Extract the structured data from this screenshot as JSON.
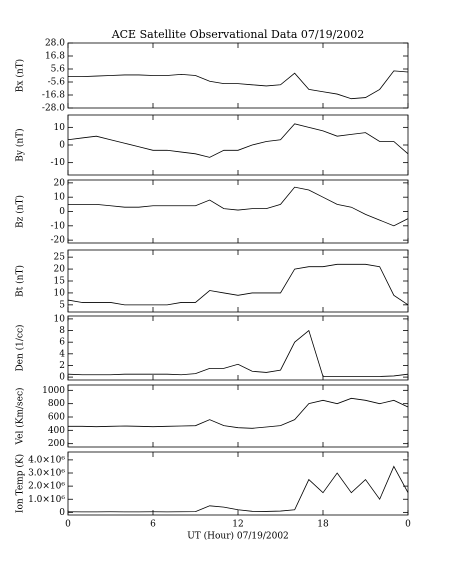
{
  "chart_data": [
    {
      "type": "line",
      "title": "ACE Satellite Observational Data   07/19/2002",
      "ylabel": "Bx (nT)",
      "x": [
        0,
        1,
        2,
        3,
        4,
        5,
        6,
        7,
        8,
        9,
        10,
        11,
        12,
        13,
        14,
        15,
        16,
        17,
        18,
        19,
        20,
        21,
        22,
        23,
        24
      ],
      "values": [
        -1,
        -1,
        -0.5,
        0,
        0.5,
        0.5,
        0,
        0,
        1,
        0,
        -5,
        -7,
        -7,
        -8,
        -9,
        -8,
        2,
        -12,
        -14,
        -16,
        -20,
        -19,
        -12,
        4,
        3
      ],
      "xlim": [
        0,
        24
      ],
      "ylim": [
        -28,
        28
      ],
      "yticks": [
        {
          "value": 28,
          "label": "28.0"
        },
        16.8,
        5.6,
        -5.6,
        -16.8,
        {
          "value": -28,
          "label": "-28.0"
        }
      ],
      "color": "#000000"
    },
    {
      "type": "line",
      "ylabel": "By (nT)",
      "x": [
        0,
        1,
        2,
        3,
        4,
        5,
        6,
        7,
        8,
        9,
        10,
        11,
        12,
        13,
        14,
        15,
        16,
        17,
        18,
        19,
        20,
        21,
        22,
        23,
        24
      ],
      "values": [
        3,
        4,
        5,
        3,
        1,
        -1,
        -3,
        -3,
        -4,
        -5,
        -7,
        -3,
        -3,
        0,
        2,
        3,
        12,
        10,
        8,
        5,
        6,
        7,
        2,
        2,
        -5
      ],
      "xlim": [
        0,
        24
      ],
      "ylim": [
        -17,
        17
      ],
      "yticks": [
        10,
        0,
        -10
      ],
      "color": "#000000"
    },
    {
      "type": "line",
      "ylabel": "Bz (nT)",
      "x": [
        0,
        1,
        2,
        3,
        4,
        5,
        6,
        7,
        8,
        9,
        10,
        11,
        12,
        13,
        14,
        15,
        16,
        17,
        18,
        19,
        20,
        21,
        22,
        23,
        24
      ],
      "values": [
        5,
        5,
        5,
        4,
        3,
        3,
        4,
        4,
        4,
        4,
        8,
        2,
        1,
        2,
        2,
        5,
        17,
        15,
        10,
        5,
        3,
        -2,
        -6,
        -10,
        -5
      ],
      "xlim": [
        0,
        24
      ],
      "ylim": [
        -22,
        22
      ],
      "yticks": [
        20,
        10,
        0,
        -10,
        -20
      ],
      "color": "#000000"
    },
    {
      "type": "line",
      "ylabel": "Bt (nT)",
      "x": [
        0,
        1,
        2,
        3,
        4,
        5,
        6,
        7,
        8,
        9,
        10,
        11,
        12,
        13,
        14,
        15,
        16,
        17,
        18,
        19,
        20,
        21,
        22,
        23,
        24
      ],
      "values": [
        7,
        6,
        6,
        6,
        5,
        5,
        5,
        5,
        6,
        6,
        11,
        10,
        9,
        10,
        10,
        10,
        20,
        21,
        21,
        22,
        22,
        22,
        21,
        9,
        5
      ],
      "xlim": [
        0,
        24
      ],
      "ylim": [
        2,
        28
      ],
      "yticks": [
        25,
        20,
        15,
        10,
        5
      ],
      "color": "#000000"
    },
    {
      "type": "line",
      "ylabel": "Den (1/cc)",
      "x": [
        0,
        1,
        2,
        3,
        4,
        5,
        6,
        7,
        8,
        9,
        10,
        11,
        12,
        13,
        14,
        15,
        16,
        17,
        18,
        19,
        20,
        21,
        22,
        23,
        24
      ],
      "values": [
        0.5,
        0.4,
        0.4,
        0.4,
        0.5,
        0.5,
        0.5,
        0.5,
        0.4,
        0.6,
        1.5,
        1.5,
        2.2,
        1.0,
        0.8,
        1.2,
        6.0,
        8.0,
        0.1,
        0.1,
        0.1,
        0.1,
        0.1,
        0.2,
        0.5
      ],
      "xlim": [
        0,
        24
      ],
      "ylim": [
        -0.5,
        10.5
      ],
      "yticks": [
        10,
        8,
        6,
        4,
        2,
        0
      ],
      "color": "#000000"
    },
    {
      "type": "line",
      "ylabel": "Vel (Km/sec)",
      "x": [
        0,
        1,
        2,
        3,
        4,
        5,
        6,
        7,
        8,
        9,
        10,
        11,
        12,
        13,
        14,
        15,
        16,
        17,
        18,
        19,
        20,
        21,
        22,
        23,
        24
      ],
      "values": [
        460,
        460,
        455,
        460,
        465,
        460,
        455,
        460,
        465,
        470,
        560,
        470,
        440,
        430,
        450,
        470,
        560,
        800,
        850,
        800,
        880,
        850,
        800,
        850,
        750
      ],
      "xlim": [
        0,
        24
      ],
      "ylim": [
        150,
        1080
      ],
      "yticks": [
        1000,
        800,
        600,
        400,
        200
      ],
      "color": "#000000"
    },
    {
      "type": "line",
      "ylabel": "Ion Temp (K)",
      "xlabel": "UT (Hour)   07/19/2002",
      "x": [
        0,
        1,
        2,
        3,
        4,
        5,
        6,
        7,
        8,
        9,
        10,
        11,
        12,
        13,
        14,
        15,
        16,
        17,
        18,
        19,
        20,
        21,
        22,
        23,
        24
      ],
      "values": [
        50000,
        40000,
        40000,
        50000,
        40000,
        40000,
        50000,
        40000,
        50000,
        60000,
        500000,
        400000,
        200000,
        80000,
        70000,
        100000,
        200000,
        2500000,
        1500000,
        3000000,
        1500000,
        2500000,
        1000000,
        3500000,
        1500000
      ],
      "xlim": [
        0,
        24
      ],
      "ylim": [
        -200000,
        4600000
      ],
      "yticks": [
        {
          "value": 4000000,
          "label": "4.0×10⁶"
        },
        {
          "value": 3000000,
          "label": "3.0×10⁶"
        },
        {
          "value": 2000000,
          "label": "2.0×10⁶"
        },
        {
          "value": 1000000,
          "label": "1.0×10⁶"
        },
        0
      ],
      "xticks": [
        0,
        6,
        12,
        18,
        {
          "value": 24,
          "label": "0"
        }
      ],
      "color": "#000000"
    }
  ]
}
